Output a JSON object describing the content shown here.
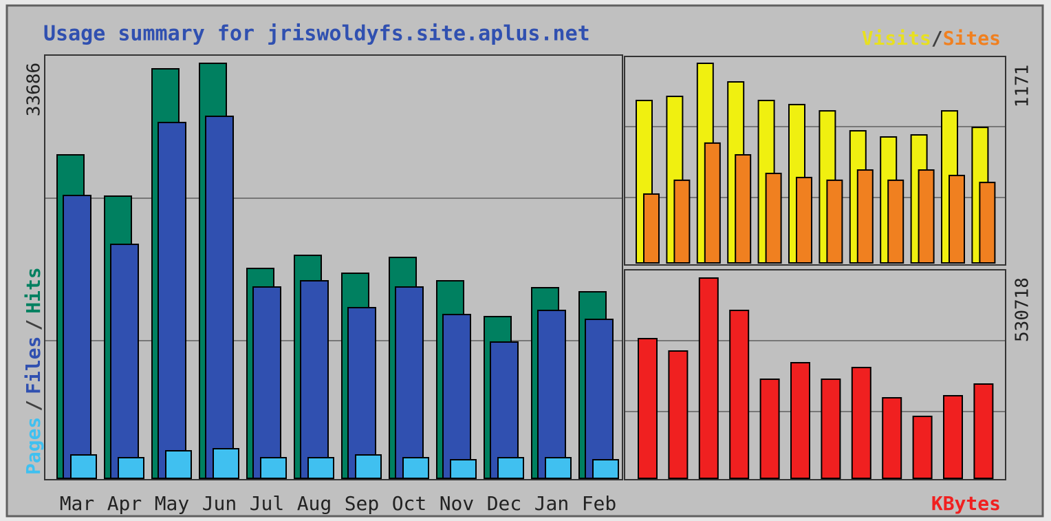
{
  "chart_data": [
    {
      "type": "bar",
      "title": "Usage summary for jriswoldyfs.site.aplus.net",
      "separator": "/",
      "categories": [
        "Mar",
        "Apr",
        "May",
        "Jun",
        "Jul",
        "Aug",
        "Sep",
        "Oct",
        "Nov",
        "Dec",
        "Jan",
        "Feb"
      ],
      "series": [
        {
          "name": "Hits",
          "color": "#008060",
          "values": [
            26256,
            22905,
            33239,
            33686,
            17038,
            18100,
            16647,
            17932,
            16033,
            13128,
            15474,
            15139
          ]
        },
        {
          "name": "Files",
          "color": "#3050b0",
          "values": [
            22960,
            18993,
            28882,
            29385,
            15530,
            16033,
            13854,
            15530,
            13295,
            11061,
            13630,
            12904
          ]
        },
        {
          "name": "Pages",
          "color": "#40c0f0",
          "values": [
            1899,
            1676,
            2235,
            2402,
            1676,
            1676,
            1899,
            1676,
            1508,
            1676,
            1676,
            1508
          ]
        }
      ],
      "ylim": [
        0,
        33686
      ],
      "yticks": [
        33686
      ]
    },
    {
      "type": "bar",
      "separator": "/",
      "series": [
        {
          "name": "Visits",
          "color": "#f0f010",
          "values": [
            953,
            977,
            1171,
            1062,
            953,
            929,
            892,
            775,
            739,
            751,
            892,
            795
          ]
        },
        {
          "name": "Sites",
          "color": "#f08020",
          "values": [
            404,
            485,
            703,
            634,
            525,
            501,
            485,
            545,
            485,
            545,
            513,
            472
          ]
        }
      ],
      "ylim": [
        0,
        1171
      ],
      "yticks": [
        1171
      ]
    },
    {
      "type": "bar",
      "series": [
        {
          "name": "KBytes",
          "color": "#f02020",
          "values": [
            370226,
            337390,
            530718,
            445002,
            262616,
            306385,
            262616,
            293618,
            213386,
            164143,
            218852,
            249852
          ]
        }
      ],
      "ylim": [
        0,
        530718
      ],
      "yticks": [
        530718
      ]
    }
  ]
}
